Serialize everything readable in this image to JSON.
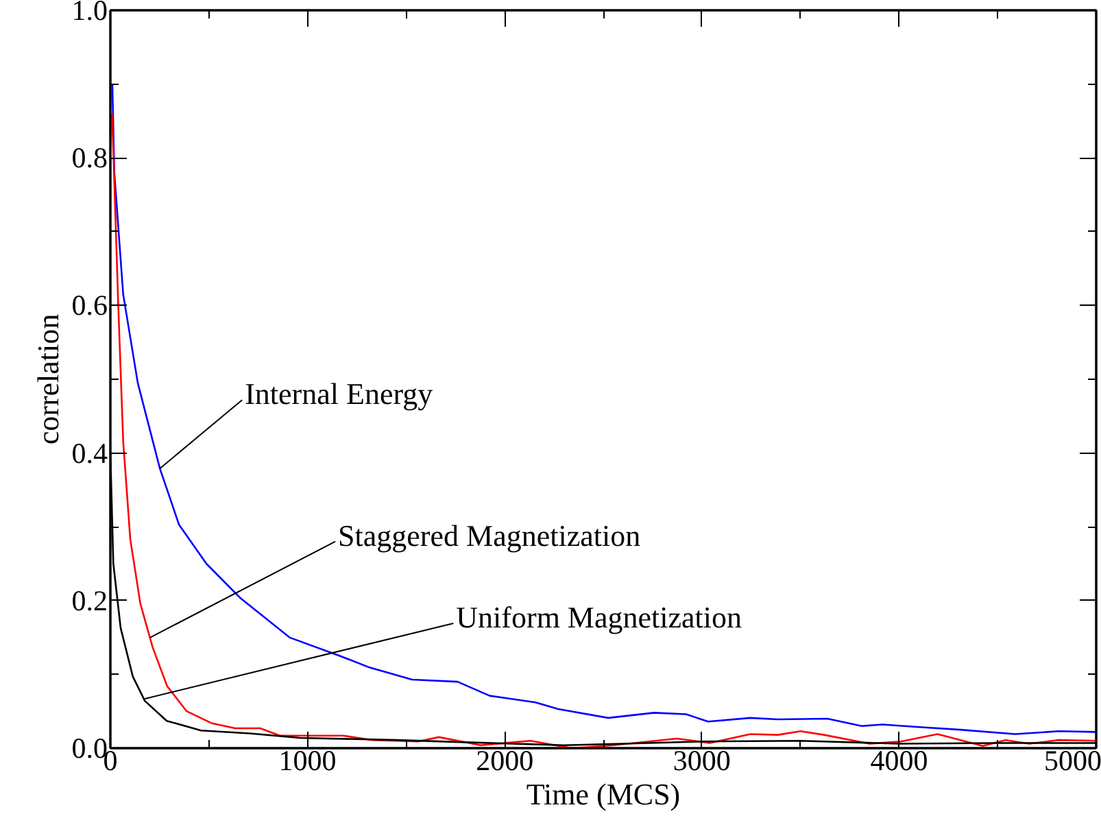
{
  "chart_data": {
    "type": "line",
    "xlabel": "Time (MCS)",
    "ylabel": "correlation",
    "xlim": [
      0,
      5000
    ],
    "ylim": [
      0,
      1
    ],
    "xticks": [
      0,
      1000,
      2000,
      3000,
      4000,
      5000
    ],
    "yticks": [
      {
        "value": 0,
        "label": "0.0"
      },
      {
        "value": 0.2,
        "label": "0.2"
      },
      {
        "value": 0.4,
        "label": "0.4"
      },
      {
        "value": 0.6,
        "label": "0.6"
      },
      {
        "value": 0.8,
        "label": "0.8"
      },
      {
        "value": 1,
        "label": "1.0"
      }
    ],
    "grid": false,
    "marker": "none",
    "line_style": "solid",
    "series": [
      {
        "color": "#0000ff",
        "x": [
          10,
          20,
          65,
          139,
          251,
          348,
          487,
          661,
          909,
          1155,
          1308,
          1530,
          1761,
          1924,
          2156,
          2272,
          2525,
          2758,
          2920,
          3032,
          3246,
          3385,
          3637,
          3811,
          3915,
          4077,
          4311,
          4589,
          4810,
          5000
        ],
        "values": [
          0.9,
          0.78,
          0.615,
          0.495,
          0.379,
          0.303,
          0.25,
          0.203,
          0.15,
          0.126,
          0.11,
          0.093,
          0.09,
          0.071,
          0.062,
          0.053,
          0.041,
          0.048,
          0.046,
          0.036,
          0.041,
          0.039,
          0.04,
          0.03,
          0.032,
          0.029,
          0.025,
          0.019,
          0.023,
          0.022
        ]
      },
      {
        "color": "#ff0000",
        "x": [
          8,
          15,
          40,
          65,
          101,
          152,
          214,
          288,
          387,
          512,
          633,
          760,
          860,
          1180,
          1330,
          1560,
          1666,
          1878,
          2130,
          2341,
          2550,
          2873,
          3040,
          3246,
          3385,
          3500,
          3620,
          3850,
          4010,
          4195,
          4425,
          4540,
          4660,
          4810,
          5000
        ],
        "values": [
          0.86,
          0.81,
          0.6,
          0.416,
          0.283,
          0.196,
          0.137,
          0.084,
          0.05,
          0.034,
          0.027,
          0.027,
          0.017,
          0.017,
          0.011,
          0.009,
          0.015,
          0.004,
          0.01,
          0.0,
          0.004,
          0.013,
          0.007,
          0.019,
          0.018,
          0.023,
          0.018,
          0.006,
          0.009,
          0.019,
          0.003,
          0.011,
          0.006,
          0.011,
          0.01
        ]
      },
      {
        "color": "#000000",
        "x": [
          0,
          15,
          52,
          114,
          175,
          286,
          460,
          708,
          960,
          1450,
          1800,
          2300,
          2600,
          3000,
          3500,
          4000,
          4500,
          5000
        ],
        "values": [
          0.4,
          0.25,
          0.163,
          0.097,
          0.064,
          0.037,
          0.024,
          0.02,
          0.014,
          0.011,
          0.008,
          0.004,
          0.006,
          0.009,
          0.01,
          0.006,
          0.007,
          0.007
        ]
      }
    ],
    "annotations": [
      {
        "text": "Internal Energy",
        "x": 251,
        "y": 0.379
      },
      {
        "text": "Staggered Magnetization",
        "x": 202,
        "y": 0.15
      },
      {
        "text": "Uniform Magnetization",
        "x": 175,
        "y": 0.067
      }
    ]
  }
}
